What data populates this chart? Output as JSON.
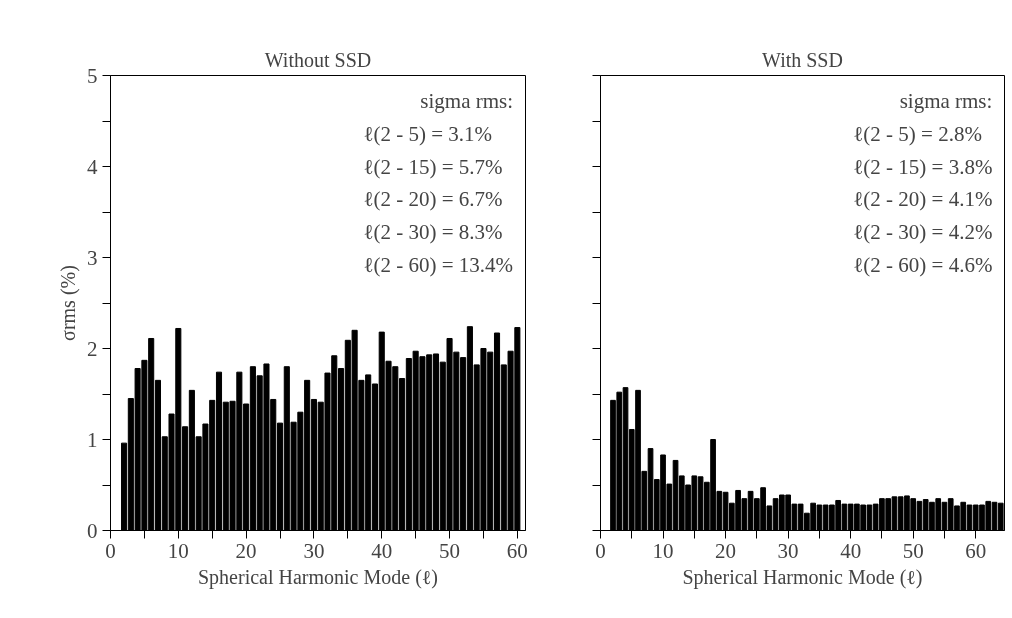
{
  "chart_data": [
    {
      "type": "bar",
      "title": "Without SSD",
      "xlabel": "Spherical Harmonic Mode (ℓ)",
      "ylabel": "σrms (%)",
      "x": [
        2,
        3,
        4,
        5,
        6,
        7,
        8,
        9,
        10,
        11,
        12,
        13,
        14,
        15,
        16,
        17,
        18,
        19,
        20,
        21,
        22,
        23,
        24,
        25,
        26,
        27,
        28,
        29,
        30,
        31,
        32,
        33,
        34,
        35,
        36,
        37,
        38,
        39,
        40,
        41,
        42,
        43,
        44,
        45,
        46,
        47,
        48,
        49,
        50,
        51,
        52,
        53,
        54,
        55,
        56,
        57,
        58,
        59,
        60
      ],
      "values": [
        0.96,
        1.45,
        1.78,
        1.87,
        2.11,
        1.65,
        1.03,
        1.28,
        2.22,
        1.14,
        1.54,
        1.03,
        1.17,
        1.43,
        1.74,
        1.41,
        1.42,
        1.74,
        1.39,
        1.8,
        1.7,
        1.83,
        1.44,
        1.18,
        1.8,
        1.19,
        1.3,
        1.65,
        1.44,
        1.41,
        1.73,
        1.92,
        1.78,
        2.09,
        2.2,
        1.65,
        1.71,
        1.61,
        2.18,
        1.86,
        1.8,
        1.67,
        1.89,
        1.97,
        1.91,
        1.93,
        1.94,
        1.85,
        2.11,
        1.96,
        1.9,
        2.24,
        1.82,
        2.0,
        1.96,
        2.17,
        1.82,
        1.97,
        2.23
      ],
      "color": "#000000",
      "xlim": [
        0,
        61.2
      ],
      "ylim": [
        0,
        5
      ],
      "xticks": [
        0,
        {
          "value": 5,
          "label": null
        },
        10,
        {
          "value": 15,
          "label": null
        },
        20,
        {
          "value": 25,
          "label": null
        },
        30,
        {
          "value": 35,
          "label": null
        },
        40,
        {
          "value": 45,
          "label": null
        },
        50,
        {
          "value": 55,
          "label": null
        },
        60
      ],
      "yticks": [
        0,
        {
          "value": 0.5,
          "label": null
        },
        1,
        {
          "value": 1.5,
          "label": null
        },
        2,
        {
          "value": 2.5,
          "label": null
        },
        3,
        {
          "value": 3.5,
          "label": null
        },
        4,
        {
          "value": 4.5,
          "label": null
        },
        5
      ],
      "annotations": [
        "sigma rms:",
        "ℓ(2 -   5) =   3.1%",
        "ℓ(2 - 15) =   5.7%",
        "ℓ(2 - 20) =   6.7%",
        "ℓ(2 - 30) =   8.3%",
        "ℓ(2 - 60) = 13.4%"
      ],
      "grid": false
    },
    {
      "type": "bar",
      "title": "With SSD",
      "xlabel": "Spherical Harmonic Mode (ℓ)",
      "x": [
        2,
        3,
        4,
        5,
        6,
        7,
        8,
        9,
        10,
        11,
        12,
        13,
        14,
        15,
        16,
        17,
        18,
        19,
        20,
        21,
        22,
        23,
        24,
        25,
        26,
        27,
        28,
        29,
        30,
        31,
        32,
        33,
        34,
        35,
        36,
        37,
        38,
        39,
        40,
        41,
        42,
        43,
        44,
        45,
        46,
        47,
        48,
        49,
        50,
        51,
        52,
        53,
        54,
        55,
        56,
        57,
        58,
        59,
        60,
        61,
        62,
        63,
        64
      ],
      "values": [
        1.43,
        1.52,
        1.57,
        1.11,
        1.54,
        0.65,
        0.9,
        0.56,
        0.83,
        0.51,
        0.77,
        0.6,
        0.5,
        0.6,
        0.59,
        0.53,
        1.0,
        0.43,
        0.42,
        0.3,
        0.44,
        0.35,
        0.43,
        0.35,
        0.47,
        0.27,
        0.35,
        0.39,
        0.39,
        0.29,
        0.29,
        0.19,
        0.3,
        0.28,
        0.28,
        0.28,
        0.33,
        0.29,
        0.29,
        0.29,
        0.28,
        0.28,
        0.29,
        0.35,
        0.35,
        0.37,
        0.37,
        0.38,
        0.35,
        0.32,
        0.34,
        0.31,
        0.35,
        0.31,
        0.35,
        0.27,
        0.31,
        0.28,
        0.28,
        0.28,
        0.32,
        0.31,
        0.3
      ],
      "color": "#000000",
      "xlim": [
        0,
        64.6
      ],
      "ylim": [
        0,
        5
      ],
      "xticks": [
        0,
        {
          "value": 5,
          "label": null
        },
        10,
        {
          "value": 15,
          "label": null
        },
        20,
        {
          "value": 25,
          "label": null
        },
        30,
        {
          "value": 35,
          "label": null
        },
        40,
        {
          "value": 45,
          "label": null
        },
        50,
        {
          "value": 55,
          "label": null
        },
        60
      ],
      "yticks": [
        0,
        {
          "value": 0.5,
          "label": null
        },
        1,
        {
          "value": 1.5,
          "label": null
        },
        2,
        {
          "value": 2.5,
          "label": null
        },
        3,
        {
          "value": 3.5,
          "label": null
        },
        4,
        {
          "value": 4.5,
          "label": null
        },
        5
      ],
      "tick_labels": "x",
      "annotations": [
        "sigma rms:",
        "ℓ(2 -   5) = 2.8%",
        "ℓ(2 - 15) = 3.8%",
        "ℓ(2 - 20) = 4.1%",
        "ℓ(2 - 30) = 4.2%",
        "ℓ(2 - 60) = 4.6%"
      ],
      "grid": false
    }
  ]
}
